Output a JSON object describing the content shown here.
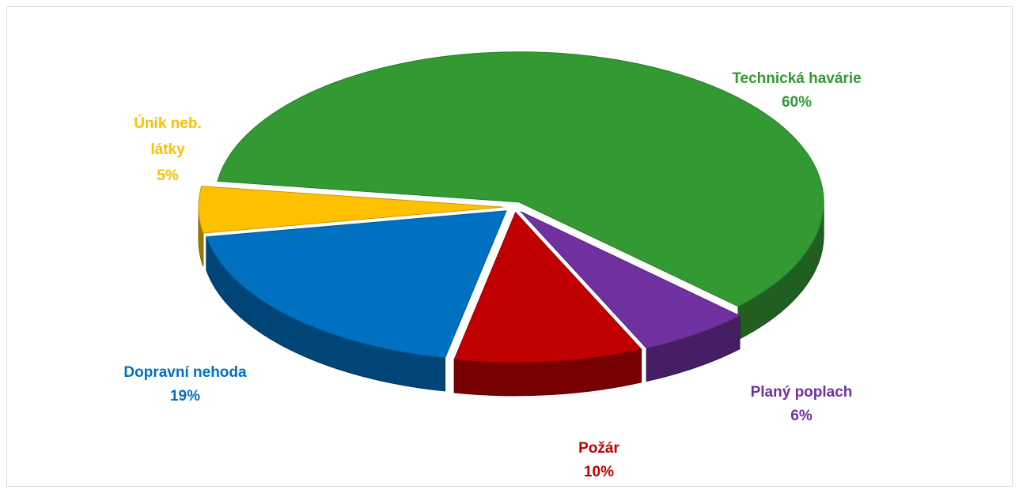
{
  "chart_data": {
    "type": "pie",
    "categories": [
      "Technická havárie",
      "Planý poplach",
      "Požár",
      "Dopravní nehoda",
      "Únik neb. látky"
    ],
    "values": [
      60,
      6,
      10,
      19,
      5
    ],
    "value_labels": [
      "60%",
      "6%",
      "10%",
      "19%",
      "5%"
    ],
    "colors": [
      "#339933",
      "#7030a0",
      "#c00000",
      "#0070c0",
      "#ffc000"
    ]
  }
}
